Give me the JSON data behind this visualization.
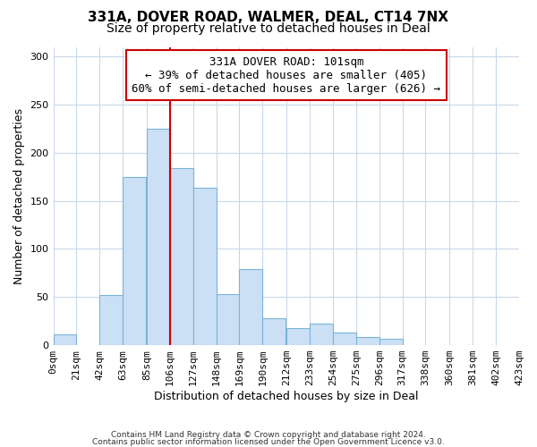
{
  "title": "331A, DOVER ROAD, WALMER, DEAL, CT14 7NX",
  "subtitle": "Size of property relative to detached houses in Deal",
  "xlabel": "Distribution of detached houses by size in Deal",
  "ylabel": "Number of detached properties",
  "footnote1": "Contains HM Land Registry data © Crown copyright and database right 2024.",
  "footnote2": "Contains public sector information licensed under the Open Government Licence v3.0.",
  "bar_color": "#cce0f5",
  "bar_edge_color": "#7ab4d8",
  "bar_left_edges": [
    0,
    21,
    42,
    63,
    85,
    106,
    127,
    148,
    169,
    190,
    212,
    233,
    254,
    275,
    296,
    317,
    338,
    360,
    381,
    402
  ],
  "bar_heights": [
    11,
    0,
    52,
    175,
    225,
    184,
    164,
    53,
    79,
    28,
    18,
    22,
    13,
    8,
    7,
    0,
    0,
    0,
    0,
    0
  ],
  "bin_width": 21,
  "x_tick_labels": [
    "0sqm",
    "21sqm",
    "42sqm",
    "63sqm",
    "85sqm",
    "106sqm",
    "127sqm",
    "148sqm",
    "169sqm",
    "190sqm",
    "212sqm",
    "233sqm",
    "254sqm",
    "275sqm",
    "296sqm",
    "317sqm",
    "338sqm",
    "360sqm",
    "381sqm",
    "402sqm",
    "423sqm"
  ],
  "ylim": [
    0,
    310
  ],
  "yticks": [
    0,
    50,
    100,
    150,
    200,
    250,
    300
  ],
  "property_line_x": 106,
  "property_line_color": "#cc0000",
  "annotation_title": "331A DOVER ROAD: 101sqm",
  "annotation_line1": "← 39% of detached houses are smaller (405)",
  "annotation_line2": "60% of semi-detached houses are larger (626) →",
  "annotation_box_color": "#ffffff",
  "annotation_box_edge": "#cc0000",
  "background_color": "#ffffff",
  "grid_color": "#c8d8e8",
  "title_fontsize": 11,
  "subtitle_fontsize": 10,
  "annot_fontsize": 9,
  "axis_label_fontsize": 9,
  "tick_fontsize": 8
}
